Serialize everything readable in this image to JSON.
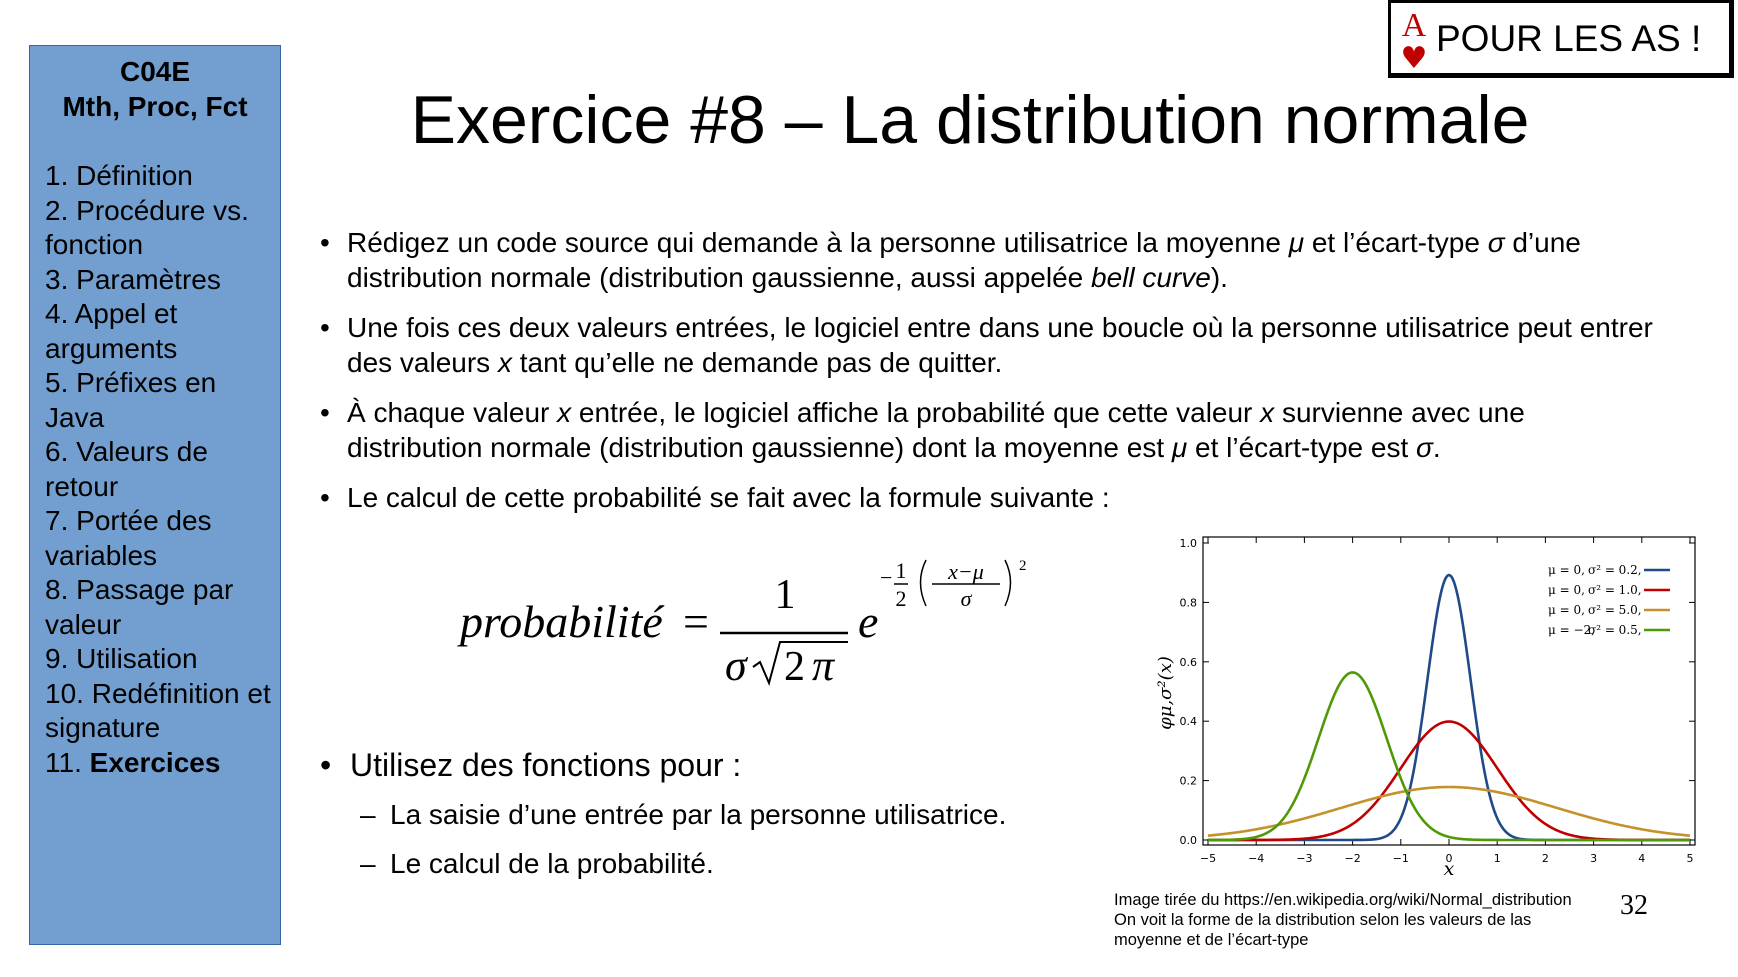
{
  "sidebar": {
    "course_code": "C04E",
    "course_subtitle": "Mth, Proc, Fct",
    "items": [
      {
        "num": "1.",
        "label": "Définition"
      },
      {
        "num": "2.",
        "label": "Procédure vs. fonction"
      },
      {
        "num": "3.",
        "label": "Paramètres"
      },
      {
        "num": "4.",
        "label": "Appel et arguments"
      },
      {
        "num": "5.",
        "label": "Préfixes en Java"
      },
      {
        "num": "6.",
        "label": "Valeurs de retour"
      },
      {
        "num": "7.",
        "label": "Portée des variables"
      },
      {
        "num": "8.",
        "label": "Passage par valeur"
      },
      {
        "num": "9.",
        "label": "Utilisation"
      },
      {
        "num": "10.",
        "label": "Redéfinition et signature"
      },
      {
        "num": "11.",
        "label": "Exercices"
      }
    ],
    "active_index": 10
  },
  "badge": {
    "card_rank": "A",
    "card_suit": "♥",
    "text": "POUR LES AS !"
  },
  "title": "Exercice #8 – La distribution normale",
  "bullets": {
    "b1": {
      "t1": "Rédigez un code source qui demande à la personne utilisatrice la moyenne ",
      "mu": "μ",
      "t2": " et l’écart-type ",
      "sigma": "σ",
      "t3": " d’une distribution normale (distribution gaussienne, aussi appelée ",
      "bell": "bell curve",
      "t4": ")."
    },
    "b2": {
      "t1": "Une fois ces deux valeurs entrées, le logiciel entre dans une boucle où la personne utilisatrice peut entrer des valeurs ",
      "x": "x",
      "t2": " tant qu’elle ne demande pas de quitter."
    },
    "b3": {
      "t1": "À chaque valeur ",
      "x1": "x",
      "t2": " entrée, le logiciel affiche la probabilité que cette valeur ",
      "x2": "x",
      "t3": " survienne avec une distribution normale (distribution gaussienne) dont la moyenne est ",
      "mu": "μ",
      "t4": " et l’écart-type est ",
      "sigma": "σ",
      "t5": "."
    },
    "b4": "Le calcul de cette probabilité se fait avec la formule suivante :"
  },
  "formula": {
    "lhs": "probabilité",
    "equals": "=",
    "numerator": "1",
    "sigma": "σ",
    "two": "2",
    "pi": "π",
    "e": "e",
    "minus": "−",
    "half_num": "1",
    "half_den": "2",
    "inner_num": "x−μ",
    "inner_den": "σ",
    "exponent": "2"
  },
  "functions": {
    "lead": "Utilisez des fonctions pour :",
    "items": [
      "La saisie d’une entrée par la personne utilisatrice.",
      "Le calcul de la probabilité."
    ]
  },
  "chart_data": {
    "type": "line",
    "title": "",
    "xlabel": "x",
    "ylabel": "φμ,σ²(x)",
    "xlim": [
      -5,
      5
    ],
    "ylim": [
      0,
      1.0
    ],
    "x_ticks": [
      "−5",
      "−4",
      "−3",
      "−2",
      "−1",
      "0",
      "1",
      "2",
      "3",
      "4",
      "5"
    ],
    "y_ticks": [
      "0.0",
      "0.2",
      "0.4",
      "0.6",
      "0.8",
      "1.0"
    ],
    "legend_position": "top-right",
    "series": [
      {
        "name": "μ = 0,  σ² = 0.2,",
        "legend_mu": "μ = 0,",
        "legend_var": "σ² = 0.2,",
        "mu": 0,
        "variance": 0.2,
        "color": "#204a87",
        "peak": 0.892
      },
      {
        "name": "μ = 0,  σ² = 1.0,",
        "legend_mu": "μ = 0,",
        "legend_var": "σ² = 1.0,",
        "mu": 0,
        "variance": 1.0,
        "color": "#c00000",
        "peak": 0.399
      },
      {
        "name": "μ = 0,  σ² = 5.0,",
        "legend_mu": "μ = 0,",
        "legend_var": "σ² = 5.0,",
        "mu": 0,
        "variance": 5.0,
        "color": "#c4912a",
        "peak": 0.178
      },
      {
        "name": "μ = −2,  σ² = 0.5,",
        "legend_mu": "μ = −2,",
        "legend_var": "σ² = 0.5,",
        "mu": -2,
        "variance": 0.5,
        "color": "#4e9a06",
        "peak": 0.564
      }
    ]
  },
  "caption": {
    "line1": "Image tirée du https://en.wikipedia.org/wiki/Normal_distribution",
    "line2": "On voit la forme de la distribution selon les valeurs de las",
    "line3": "moyenne et de l’écart-type"
  },
  "page_number": "32"
}
